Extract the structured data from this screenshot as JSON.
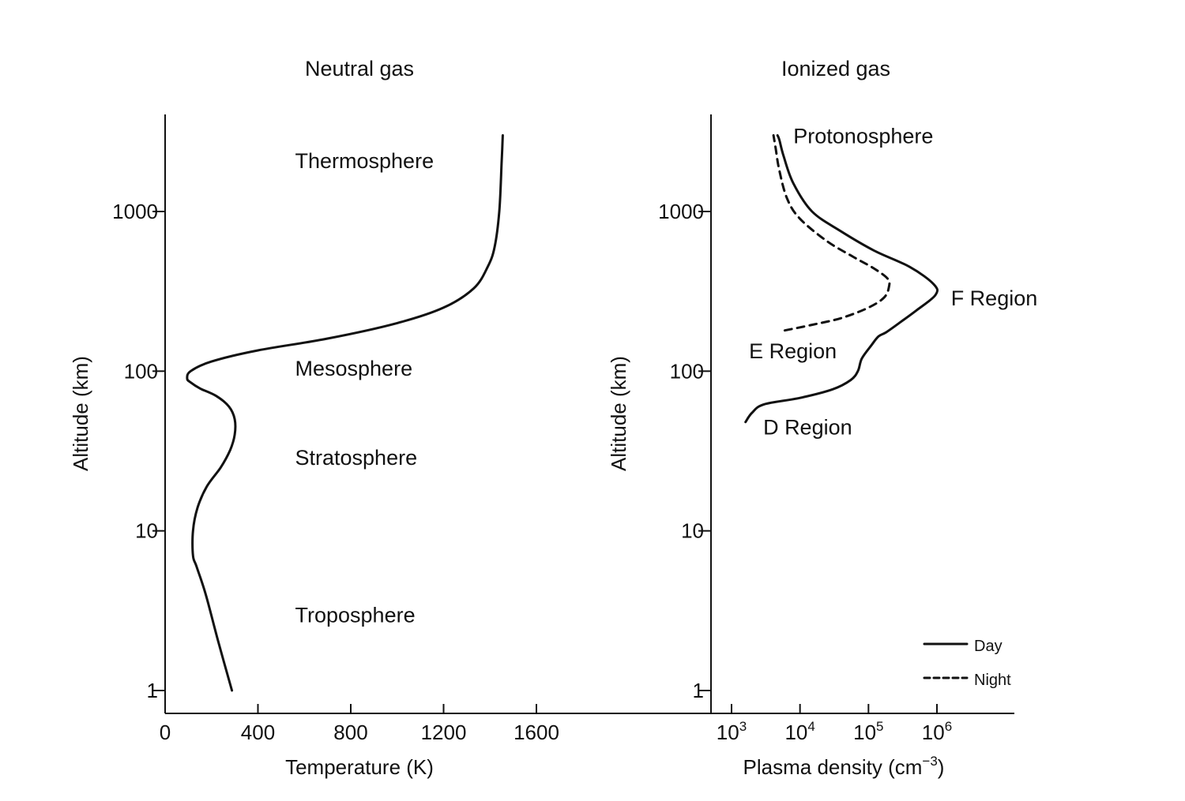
{
  "chart_data": [
    {
      "type": "line",
      "title": "Neutral gas",
      "xlabel": "Temperature (K)",
      "ylabel": "Altitude (km)",
      "x_scale": "linear",
      "y_scale": "log",
      "xlim": [
        0,
        2000
      ],
      "ylim": [
        0.85,
        3500
      ],
      "x_ticks": [
        0,
        400,
        800,
        1200,
        1600
      ],
      "x_tick_labels": [
        "0",
        "400",
        "800",
        "1200",
        "1600"
      ],
      "y_ticks": [
        1,
        10,
        100,
        1000
      ],
      "y_tick_labels": [
        "1",
        "10",
        "100",
        "1000"
      ],
      "grid": false,
      "series": [
        {
          "style": "solid",
          "points": [
            [
              288,
              1
            ],
            [
              230,
              2
            ],
            [
              175,
              4
            ],
            [
              135,
              6
            ],
            [
              120,
              7
            ],
            [
              120,
              10
            ],
            [
              140,
              14
            ],
            [
              180,
              19
            ],
            [
              240,
              25
            ],
            [
              280,
              32
            ],
            [
              300,
              40
            ],
            [
              300,
              50
            ],
            [
              275,
              60
            ],
            [
              220,
              70
            ],
            [
              150,
              78
            ],
            [
              110,
              85
            ],
            [
              95,
              90
            ],
            [
              110,
              100
            ],
            [
              200,
              115
            ],
            [
              400,
              135
            ],
            [
              700,
              160
            ],
            [
              1000,
              200
            ],
            [
              1200,
              250
            ],
            [
              1330,
              330
            ],
            [
              1390,
              450
            ],
            [
              1420,
              600
            ],
            [
              1440,
              1000
            ],
            [
              1450,
              2000
            ],
            [
              1455,
              3000
            ]
          ]
        }
      ],
      "annotations": [
        {
          "text": "Thermosphere",
          "x": 560,
          "y": 2100
        },
        {
          "text": "Mesosphere",
          "x": 560,
          "y": 105
        },
        {
          "text": "Stratosphere",
          "x": 560,
          "y": 29
        },
        {
          "text": "Troposphere",
          "x": 560,
          "y": 3.0
        }
      ]
    },
    {
      "type": "line",
      "title": "Ionized gas",
      "xlabel": "Plasma density (cm⁻³)",
      "xlabel_main": "Plasma density (cm",
      "xlabel_exp": "−3",
      "xlabel_close": ")",
      "ylabel": "Altitude (km)",
      "x_scale": "log",
      "y_scale": "log",
      "xlim": [
        700,
        10000000
      ],
      "ylim": [
        0.85,
        3500
      ],
      "x_ticks": [
        1000,
        10000,
        100000,
        1000000
      ],
      "x_tick_labels": [
        {
          "base": "10",
          "exp": "3"
        },
        {
          "base": "10",
          "exp": "4"
        },
        {
          "base": "10",
          "exp": "5"
        },
        {
          "base": "10",
          "exp": "6"
        }
      ],
      "y_ticks": [
        1,
        10,
        100,
        1000
      ],
      "y_tick_labels": [
        "1",
        "10",
        "100",
        "1000"
      ],
      "grid": false,
      "legend": {
        "position": "bottom-right",
        "entries": [
          "Day",
          "Night"
        ]
      },
      "series": [
        {
          "name": "Day",
          "style": "solid",
          "points": [
            [
              1600,
              48
            ],
            [
              2000,
              55
            ],
            [
              3000,
              62
            ],
            [
              10000,
              68
            ],
            [
              30000,
              77
            ],
            [
              55000,
              88
            ],
            [
              70000,
              100
            ],
            [
              80000,
              120
            ],
            [
              110000,
              145
            ],
            [
              140000,
              165
            ],
            [
              180000,
              175
            ],
            [
              280000,
              200
            ],
            [
              500000,
              240
            ],
            [
              950000,
              300
            ],
            [
              900000,
              350
            ],
            [
              400000,
              450
            ],
            [
              120000,
              570
            ],
            [
              40000,
              750
            ],
            [
              15000,
              1000
            ],
            [
              8000,
              1500
            ],
            [
              5800,
              2200
            ],
            [
              5000,
              2800
            ],
            [
              4700,
              3000
            ]
          ]
        },
        {
          "name": "Night",
          "style": "dashed",
          "points": [
            [
              6000,
              180
            ],
            [
              15000,
              195
            ],
            [
              40000,
              215
            ],
            [
              100000,
              250
            ],
            [
              170000,
              290
            ],
            [
              200000,
              340
            ],
            [
              190000,
              380
            ],
            [
              120000,
              440
            ],
            [
              60000,
              520
            ],
            [
              25000,
              650
            ],
            [
              10000,
              900
            ],
            [
              6500,
              1200
            ],
            [
              5000,
              1800
            ],
            [
              4400,
              2500
            ],
            [
              4100,
              3000
            ]
          ]
        }
      ],
      "annotations": [
        {
          "text": "Protonosphere",
          "x": 8000,
          "y": 3000
        },
        {
          "text": "F Region",
          "x": 1600000,
          "y": 290
        },
        {
          "text": "E Region",
          "x": 1800,
          "y": 135
        },
        {
          "text": "D Region",
          "x": 2900,
          "y": 45
        }
      ]
    }
  ]
}
